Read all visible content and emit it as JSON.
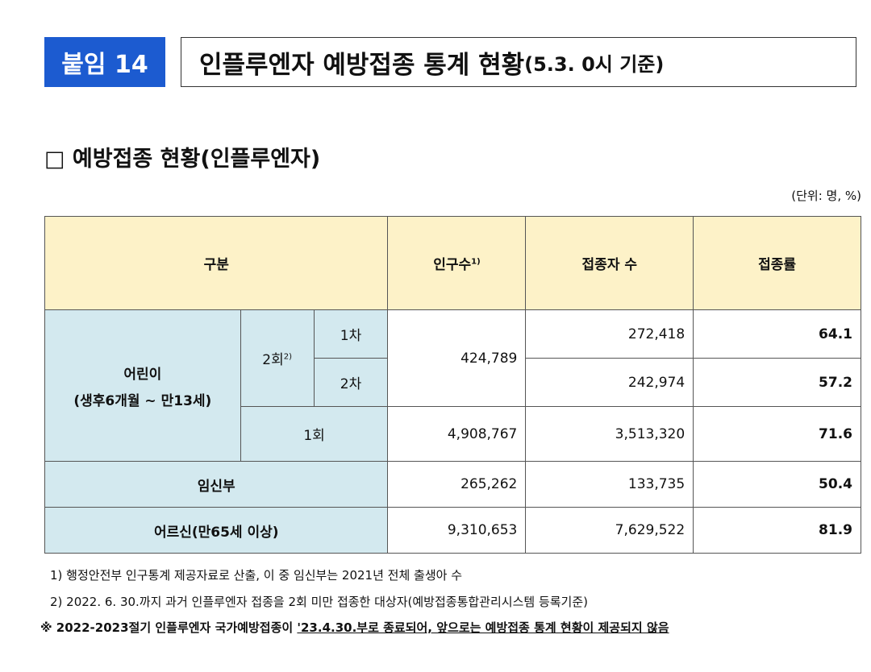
{
  "header": {
    "badge": "붙임 14",
    "title": "인플루엔자 예방접종 통계 현황",
    "title_suffix": "(5.3. 0시 기준)"
  },
  "section": {
    "title": "□ 예방접종 현황(인플루엔자)",
    "unit": "(단위: 명, %)"
  },
  "table": {
    "columns": {
      "group": "구분",
      "population": "인구수",
      "population_note": "1)",
      "vaccinated": "접종자 수",
      "rate": "접종률"
    },
    "children": {
      "label": "어린이",
      "sublabel": "(생후6개월 ~ 만13세)",
      "two_dose": "2회",
      "two_dose_note": "2)",
      "dose1": "1차",
      "dose2": "2차",
      "one_dose": "1회"
    },
    "rows": [
      {
        "population": "424,789",
        "vaccinated": "272,418",
        "rate": "64.1"
      },
      {
        "vaccinated": "242,974",
        "rate": "57.2"
      },
      {
        "population": "4,908,767",
        "vaccinated": "3,513,320",
        "rate": "71.6"
      },
      {
        "label": "임신부",
        "population": "265,262",
        "vaccinated": "133,735",
        "rate": "50.4"
      },
      {
        "label": "어르신(만65세 이상)",
        "population": "9,310,653",
        "vaccinated": "7,629,522",
        "rate": "81.9"
      }
    ]
  },
  "footnotes": [
    "1) 행정안전부 인구통계 제공자료로 산출, 이 중 임신부는 2021년 전체 출생아 수",
    "2) 2022. 6. 30.까지 과거 인플루엔자 접종을 2회 미만 접종한 대상자(예방접종통합관리시스템 등록기준)"
  ],
  "note": {
    "text": "※ 2022-2023절기 인플루엔자 국가예방접종이 ",
    "underlined": "'23.4.30.부로 종료되어, 앞으로는 예방접종 통계 현황이 제공되지 않음"
  }
}
